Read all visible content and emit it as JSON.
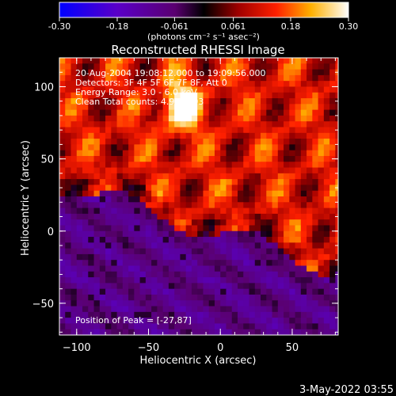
{
  "colorbar": {
    "ticks": [
      "-0.30",
      "-0.18",
      "-0.061",
      "0.061",
      "0.18",
      "0.30"
    ],
    "tick_values": [
      -0.3,
      -0.18,
      -0.061,
      0.061,
      0.18,
      0.3
    ],
    "range": [
      -0.3,
      0.3
    ],
    "unit_label": "(photons cm⁻² s⁻¹ asec⁻²)"
  },
  "chart_data": {
    "type": "heatmap",
    "title": "Reconstructed RHESSI Image",
    "xlabel": "Heliocentric X (arcsec)",
    "ylabel": "Heliocentric Y (arcsec)",
    "xlim": [
      -112,
      82
    ],
    "ylim": [
      -72,
      120
    ],
    "x_ticks": [
      -100,
      -50,
      0,
      50
    ],
    "y_ticks": [
      -50,
      0,
      50,
      100
    ],
    "value_range": [
      -0.3,
      0.3
    ],
    "peak": [
      -27,
      87
    ],
    "annotations": {
      "time": "20-Aug-2004 19:08:12.000 to 19:09:56.000",
      "detectors": "Detectors: 3F 4F 5F 6F 7F 8F, Att 0",
      "energy": "Energy Range: 3.0 - 6.0 keV",
      "clean": "Clean     Total counts: 4.98e+03",
      "peak_text": "Position of Peak = [-27,87]"
    }
  },
  "footer": {
    "timestamp": "3-May-2022 03:55"
  }
}
